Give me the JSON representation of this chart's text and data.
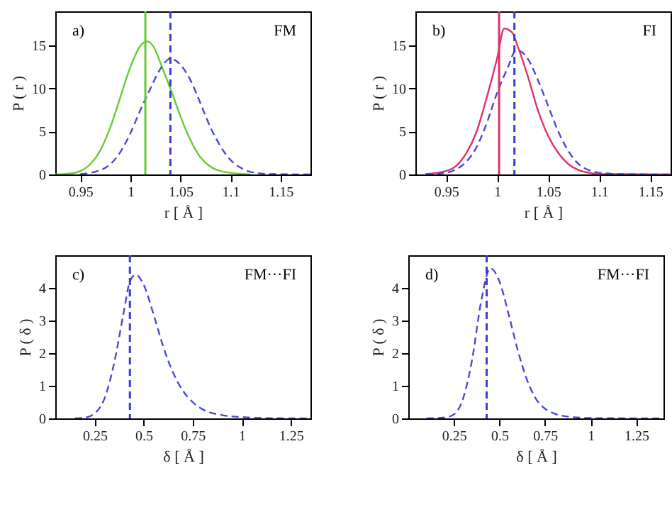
{
  "chart_data": [
    {
      "type": "line",
      "annotations": [
        "a)",
        "FM"
      ],
      "xlabel": "r [ Å ]",
      "ylabel": "P ( r )",
      "xlim": [
        0.925,
        1.18
      ],
      "xticks": [
        0.95,
        1,
        1.05,
        1.1,
        1.15
      ],
      "ylim": [
        0,
        19
      ],
      "yticks": [
        0,
        5,
        10,
        15
      ],
      "series": [
        {
          "color": "#66cc33",
          "line_style": "solid",
          "x": [
            0.925,
            0.94,
            0.95,
            0.96,
            0.97,
            0.98,
            0.99,
            1.0,
            1.01,
            1.017,
            1.025,
            1.03,
            1.04,
            1.05,
            1.06,
            1.07,
            1.08,
            1.09,
            1.1,
            1.12
          ],
          "values": [
            0,
            0.1,
            0.4,
            1.2,
            2.8,
            5.5,
            9,
            12.5,
            15,
            15.5,
            14.5,
            13,
            10,
            6.8,
            4,
            2,
            0.9,
            0.4,
            0.2,
            0
          ]
        },
        {
          "color": "#4a4ad0",
          "line_style": "dashed",
          "x": [
            0.95,
            0.97,
            0.98,
            0.99,
            1.0,
            1.01,
            1.02,
            1.03,
            1.04,
            1.05,
            1.06,
            1.07,
            1.08,
            1.09,
            1.1,
            1.11,
            1.12,
            1.14,
            1.18
          ],
          "values": [
            0.05,
            0.5,
            1.2,
            2.6,
            4.8,
            7.5,
            10,
            12.3,
            13.5,
            12.8,
            11,
            8.3,
            5.5,
            3.3,
            1.7,
            0.8,
            0.3,
            0.05,
            0
          ]
        }
      ],
      "ref_lines": [
        {
          "axis": "x",
          "value": 1.015,
          "color": "#66cc33",
          "line_style": "solid"
        },
        {
          "axis": "x",
          "value": 1.04,
          "color": "#3a3ad0",
          "line_style": "dashed"
        }
      ]
    },
    {
      "type": "line",
      "annotations": [
        "b)",
        "FI"
      ],
      "xlabel": "r [ Å ]",
      "ylabel": "P ( r )",
      "xlim": [
        0.92,
        1.17
      ],
      "xticks": [
        0.95,
        1,
        1.05,
        1.1,
        1.15
      ],
      "ylim": [
        0,
        19
      ],
      "yticks": [
        0,
        5,
        10,
        15
      ],
      "series": [
        {
          "color": "#e0306a",
          "line_style": "solid",
          "x": [
            0.93,
            0.95,
            0.96,
            0.97,
            0.98,
            0.99,
            1.0,
            1.007,
            1.015,
            1.02,
            1.03,
            1.04,
            1.05,
            1.06,
            1.07,
            1.08,
            1.09,
            1.1,
            1.17
          ],
          "values": [
            0.05,
            0.4,
            1,
            2.5,
            5,
            9,
            13.5,
            17,
            16.5,
            15,
            11.5,
            7.5,
            4.5,
            2.5,
            1.2,
            0.5,
            0.2,
            0.05,
            0
          ]
        },
        {
          "color": "#4a4ad0",
          "line_style": "dashed",
          "x": [
            0.93,
            0.95,
            0.96,
            0.97,
            0.98,
            0.99,
            1.0,
            1.01,
            1.019,
            1.03,
            1.04,
            1.05,
            1.06,
            1.07,
            1.08,
            1.09,
            1.1,
            1.12,
            1.17
          ],
          "values": [
            0,
            0.2,
            0.6,
            1.5,
            3.2,
            6,
            9.5,
            12.3,
            14.5,
            13.5,
            11,
            8,
            5,
            2.7,
            1.2,
            0.5,
            0.2,
            0.05,
            0
          ]
        }
      ],
      "ref_lines": [
        {
          "axis": "x",
          "value": 1.002,
          "color": "#e0306a",
          "line_style": "solid"
        },
        {
          "axis": "x",
          "value": 1.017,
          "color": "#3a3ad0",
          "line_style": "dashed"
        }
      ]
    },
    {
      "type": "line",
      "annotations": [
        "c)",
        "FM···FI"
      ],
      "xlabel": "δ [ Å ]",
      "ylabel": "P ( δ )",
      "xlim": [
        0.05,
        1.35
      ],
      "xticks": [
        0.25,
        0.5,
        0.75,
        1,
        1.25
      ],
      "ylim": [
        0,
        5
      ],
      "yticks": [
        0,
        1,
        2,
        3,
        4
      ],
      "series": [
        {
          "color": "#4a4ad0",
          "line_style": "dashed",
          "x": [
            0.15,
            0.2,
            0.25,
            0.3,
            0.35,
            0.4,
            0.43,
            0.46,
            0.5,
            0.55,
            0.6,
            0.65,
            0.7,
            0.75,
            0.8,
            0.9,
            1.0,
            1.1,
            1.35
          ],
          "values": [
            0,
            0.02,
            0.15,
            0.6,
            1.7,
            3.3,
            4.2,
            4.4,
            4.1,
            3.2,
            2.2,
            1.4,
            0.85,
            0.5,
            0.28,
            0.1,
            0.04,
            0.01,
            0
          ]
        }
      ],
      "ref_lines": [
        {
          "axis": "x",
          "value": 0.43,
          "color": "#3a3ad0",
          "line_style": "dashed"
        }
      ]
    },
    {
      "type": "line",
      "annotations": [
        "d)",
        "FM···FI"
      ],
      "xlabel": "δ [ Å ]",
      "ylabel": "P ( δ )",
      "xlim": [
        0,
        1.4
      ],
      "xticks": [
        0.25,
        0.5,
        0.75,
        1,
        1.25
      ],
      "ylim": [
        0,
        5
      ],
      "yticks": [
        0,
        1,
        2,
        3,
        4
      ],
      "series": [
        {
          "color": "#4a4ad0",
          "line_style": "dashed",
          "x": [
            0.1,
            0.2,
            0.25,
            0.3,
            0.35,
            0.4,
            0.45,
            0.5,
            0.55,
            0.6,
            0.65,
            0.7,
            0.75,
            0.8,
            0.9,
            1.0,
            1.4
          ],
          "values": [
            0,
            0.03,
            0.12,
            0.6,
            1.8,
            3.6,
            4.6,
            4.2,
            3.2,
            2.1,
            1.2,
            0.6,
            0.3,
            0.15,
            0.04,
            0.01,
            0
          ]
        }
      ],
      "ref_lines": [
        {
          "axis": "x",
          "value": 0.43,
          "color": "#3a3ad0",
          "line_style": "dashed"
        }
      ]
    }
  ]
}
